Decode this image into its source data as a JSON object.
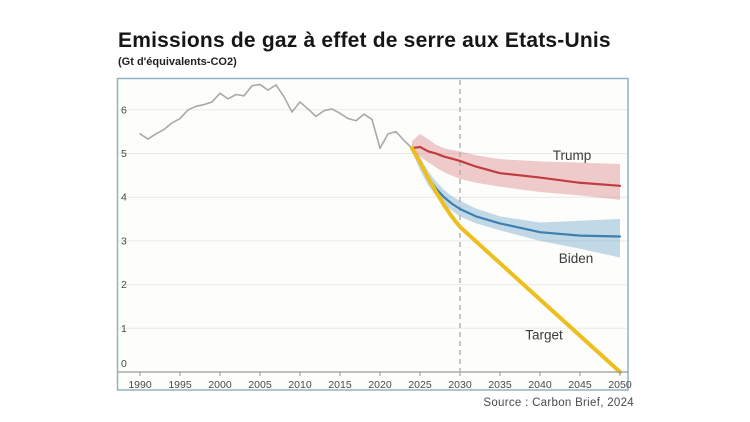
{
  "header": {
    "title": "Emissions de gaz à effet de serre aux Etats-Unis",
    "subtitle": "(Gt d'équivalents-CO2)"
  },
  "source": "Source : Carbon Brief, 2024",
  "colors": {
    "historical": "#a9a9a9",
    "trump": "#c23b3f",
    "trump_band": "#c84a4a",
    "biden": "#3e7fae",
    "biden_band": "#4a8fc0",
    "target": "#edbf1e",
    "panel_border": "#8fb3c2",
    "panel_fill": "#fdfdfb",
    "gridline": "#e9e9e5",
    "axis": "#9a9a9a",
    "dashed_line": "#aaaaaa",
    "tick_text": "#4a4a4a",
    "label_text": "#3b3b3b"
  },
  "chart_data": {
    "type": "line",
    "title": "Emissions de gaz à effet de serre aux Etats-Unis",
    "ylabel": "Gt d'équivalents-CO2",
    "xlabel": "",
    "xlim": [
      1990,
      2050
    ],
    "ylim": [
      0,
      6.73
    ],
    "x_ticks": [
      1990,
      1995,
      2000,
      2005,
      2010,
      2015,
      2020,
      2025,
      2030,
      2035,
      2040,
      2045,
      2050
    ],
    "y_ticks": [
      0,
      1,
      2,
      3,
      4,
      5,
      6
    ],
    "grid": "horizontal",
    "legend": "inline-labels",
    "vline": {
      "x": 2030,
      "style": "dashed"
    },
    "series": [
      {
        "name": "historical",
        "label": "",
        "x": [
          1990,
          1991,
          1992,
          1993,
          1994,
          1995,
          1996,
          1997,
          1998,
          1999,
          2000,
          2001,
          2002,
          2003,
          2004,
          2005,
          2006,
          2007,
          2008,
          2009,
          2010,
          2011,
          2012,
          2013,
          2014,
          2015,
          2016,
          2017,
          2018,
          2019,
          2020,
          2021,
          2022,
          2023,
          2024
        ],
        "values": [
          5.45,
          5.33,
          5.45,
          5.55,
          5.7,
          5.8,
          6.0,
          6.08,
          6.12,
          6.18,
          6.38,
          6.25,
          6.35,
          6.32,
          6.55,
          6.58,
          6.45,
          6.57,
          6.3,
          5.95,
          6.18,
          6.02,
          5.85,
          5.98,
          6.02,
          5.92,
          5.8,
          5.75,
          5.9,
          5.78,
          5.12,
          5.45,
          5.5,
          5.3,
          5.12
        ],
        "width": 1.6
      },
      {
        "name": "trump",
        "label": "Trump",
        "x": [
          2024,
          2025,
          2026,
          2027,
          2028,
          2029,
          2030,
          2032,
          2035,
          2040,
          2045,
          2050
        ],
        "values": [
          5.12,
          5.15,
          5.05,
          5.0,
          4.93,
          4.88,
          4.83,
          4.7,
          4.55,
          4.45,
          4.33,
          4.26
        ],
        "band_upper": [
          5.28,
          5.45,
          5.33,
          5.2,
          5.12,
          5.08,
          5.05,
          4.96,
          4.87,
          4.82,
          4.79,
          4.76
        ],
        "band_lower": [
          5.0,
          4.93,
          4.8,
          4.68,
          4.57,
          4.49,
          4.42,
          4.33,
          4.24,
          4.12,
          4.04,
          3.94
        ],
        "band_opacity": 0.28,
        "width": 2.2,
        "label_at": {
          "x": 2044,
          "y": 4.95
        }
      },
      {
        "name": "biden",
        "label": "Biden",
        "x": [
          2024,
          2025,
          2026,
          2027,
          2028,
          2029,
          2030,
          2032,
          2035,
          2040,
          2045,
          2050
        ],
        "values": [
          5.12,
          4.78,
          4.45,
          4.2,
          4.0,
          3.85,
          3.73,
          3.56,
          3.4,
          3.2,
          3.12,
          3.1
        ],
        "band_upper": [
          5.2,
          4.92,
          4.6,
          4.36,
          4.17,
          4.02,
          3.92,
          3.74,
          3.56,
          3.42,
          3.46,
          3.5
        ],
        "band_lower": [
          5.04,
          4.62,
          4.28,
          4.03,
          3.84,
          3.69,
          3.56,
          3.4,
          3.24,
          3.0,
          2.82,
          2.62
        ],
        "band_opacity": 0.33,
        "width": 2.2,
        "label_at": {
          "x": 2044.5,
          "y": 2.6
        }
      },
      {
        "name": "target",
        "label": "Target",
        "x": [
          2024,
          2025,
          2026,
          2027,
          2028,
          2029,
          2030,
          2035,
          2040,
          2045,
          2050
        ],
        "values": [
          5.12,
          4.8,
          4.45,
          4.12,
          3.82,
          3.55,
          3.32,
          2.49,
          1.66,
          0.83,
          0.0
        ],
        "width": 4,
        "label_at": {
          "x": 2040.5,
          "y": 0.85
        }
      }
    ]
  }
}
